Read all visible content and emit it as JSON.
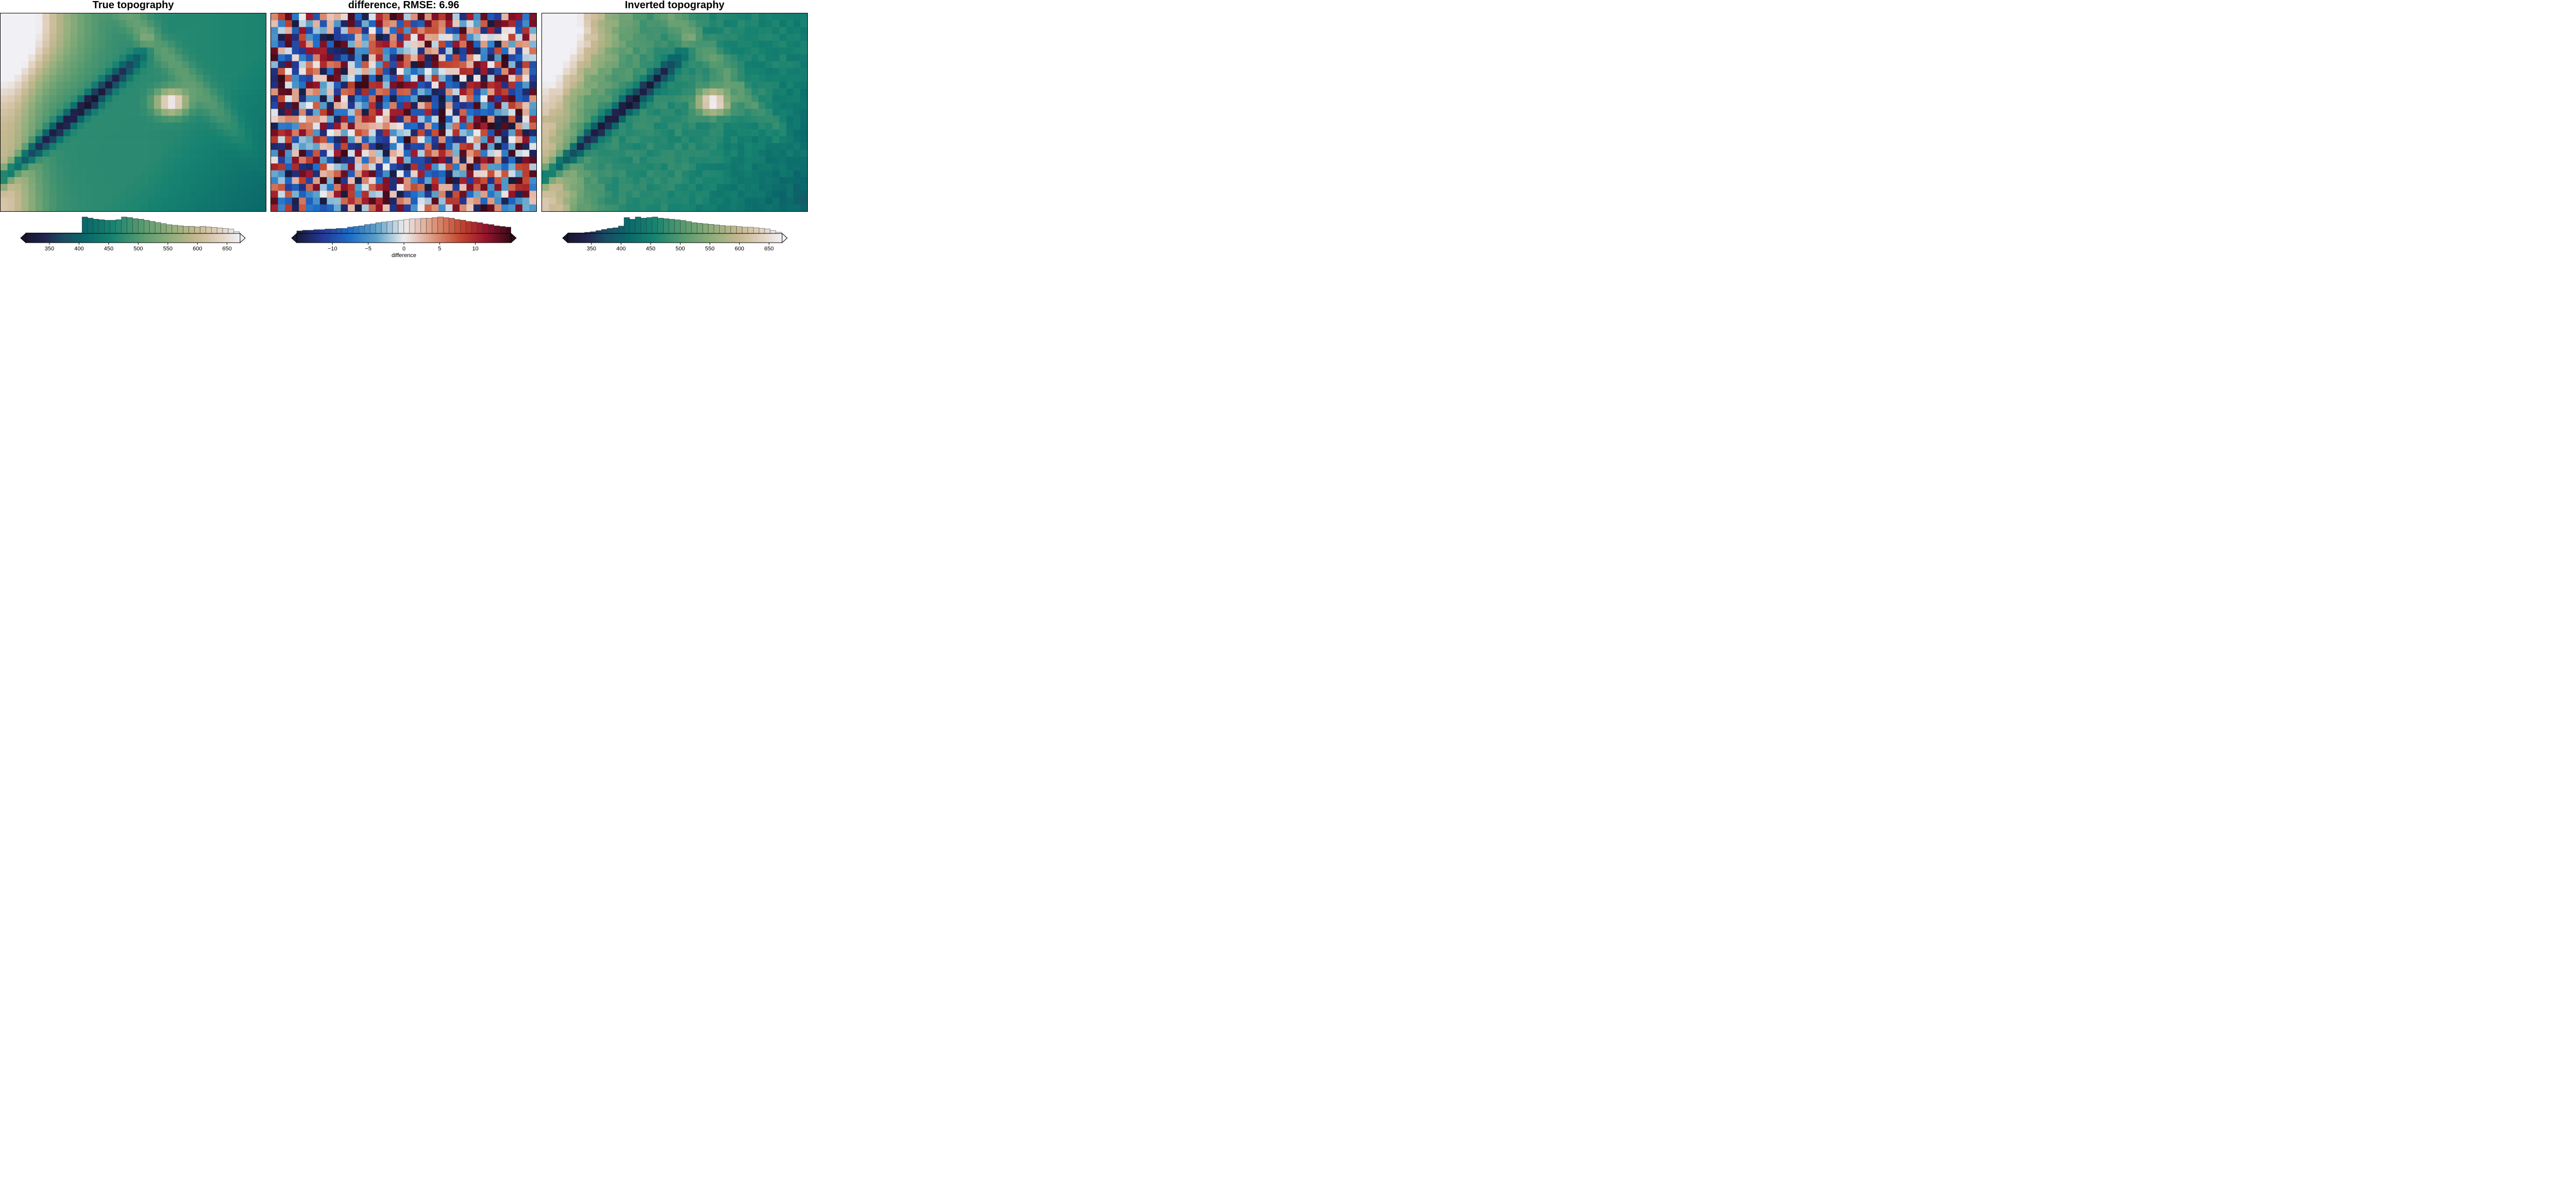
{
  "chart_data": [
    {
      "type": "heatmap",
      "title": "True topography",
      "grid": {
        "cols": 38,
        "rows": 29
      },
      "colormap": "rain",
      "vlim": [
        310,
        672
      ],
      "colorbar": {
        "ticks": [
          350,
          400,
          450,
          500,
          550,
          600,
          650
        ],
        "tick_labels": [
          "350",
          "400",
          "450",
          "500",
          "550",
          "600",
          "650"
        ],
        "label": "",
        "extend": "both",
        "histogram": {
          "bin_start": 310,
          "bin_width": 9.5,
          "counts": [
            1,
            1,
            1,
            1,
            1,
            1,
            1,
            1,
            1,
            1,
            30,
            28,
            26,
            25,
            24,
            24,
            25,
            30,
            29,
            27,
            26,
            24,
            22,
            20,
            18,
            16,
            15,
            14,
            13,
            13,
            12,
            13,
            12,
            11,
            10,
            9,
            8,
            3
          ]
        }
      }
    },
    {
      "type": "heatmap",
      "title": "difference, RMSE: 6.96",
      "grid": {
        "cols": 38,
        "rows": 29
      },
      "colormap": "balance",
      "vlim": [
        -15,
        15
      ],
      "rmse": 6.96,
      "colorbar": {
        "ticks": [
          -10,
          -5,
          0,
          5,
          10
        ],
        "tick_labels": [
          "−10",
          "−5",
          "0",
          "5",
          "10"
        ],
        "label": "difference",
        "extend": "both",
        "histogram": {
          "bin_start": -15,
          "bin_width": 0.789,
          "counts": [
            4,
            5,
            5,
            6,
            6,
            7,
            7,
            8,
            8,
            10,
            11,
            12,
            14,
            15,
            17,
            18,
            19,
            20,
            21,
            22,
            23,
            23,
            24,
            24,
            25,
            26,
            25,
            24,
            22,
            21,
            19,
            18,
            17,
            15,
            14,
            12,
            11,
            10
          ]
        }
      }
    },
    {
      "type": "heatmap",
      "title": "Inverted topography",
      "grid": {
        "cols": 38,
        "rows": 29
      },
      "colormap": "rain",
      "vlim": [
        310,
        672
      ],
      "colorbar": {
        "ticks": [
          350,
          400,
          450,
          500,
          550,
          600,
          650
        ],
        "tick_labels": [
          "350",
          "400",
          "450",
          "500",
          "550",
          "600",
          "650"
        ],
        "label": "",
        "extend": "both",
        "histogram": {
          "bin_start": 310,
          "bin_width": 9.5,
          "counts": [
            1,
            1,
            1,
            2,
            3,
            5,
            7,
            9,
            10,
            13,
            28,
            25,
            29,
            27,
            28,
            29,
            27,
            26,
            25,
            24,
            23,
            21,
            19,
            18,
            17,
            16,
            15,
            14,
            13,
            13,
            12,
            11,
            11,
            10,
            9,
            8,
            5,
            2
          ]
        }
      }
    }
  ]
}
